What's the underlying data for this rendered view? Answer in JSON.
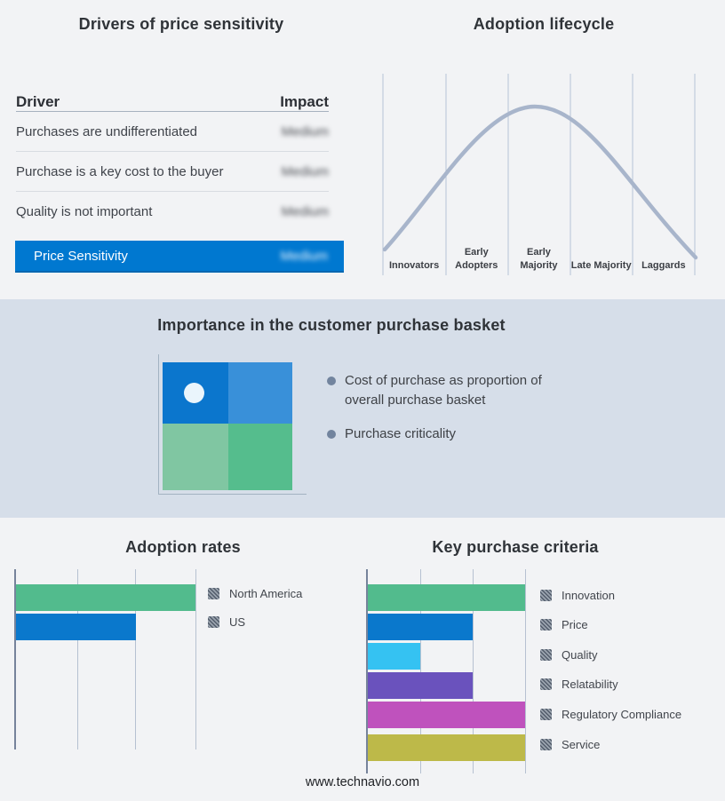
{
  "page": {
    "footer_url": "www.technavio.com",
    "background_color": "#f2f3f5",
    "band_color": "#d6dee9",
    "accent_blue": "#0078d0"
  },
  "drivers_panel": {
    "title": "Drivers of price sensitivity",
    "columns": {
      "driver": "Driver",
      "impact": "Impact"
    },
    "rows": [
      {
        "driver": "Purchases are undifferentiated",
        "impact": "Medium"
      },
      {
        "driver": "Purchase is a key cost to the buyer",
        "impact": "Medium"
      },
      {
        "driver": "Quality is not important",
        "impact": "Medium"
      }
    ],
    "summary_row": {
      "label": "Price Sensitivity",
      "impact": "Medium"
    }
  },
  "lifecycle_panel": {
    "title": "Adoption lifecycle",
    "stages": [
      "Innovators",
      "Early Adopters",
      "Early Majority",
      "Late Majority",
      "Laggards"
    ]
  },
  "basket_panel": {
    "title": "Importance in the customer purchase basket",
    "bullets": [
      "Cost of purchase as proportion of overall purchase basket",
      "Purchase criticality"
    ],
    "quadrant": {
      "top_left_color": "#0b76cd",
      "top_right_color": "#3990d9",
      "bottom_left_color": "#80c6a2",
      "bottom_right_color": "#55bd8d",
      "marker_quadrant": "top-left",
      "marker_color": "#eaf5fc"
    }
  },
  "chart_data": [
    {
      "id": "adoption-lifecycle",
      "type": "line",
      "title": "Adoption lifecycle",
      "categories": [
        "Innovators",
        "Early Adopters",
        "Early Majority",
        "Late Majority",
        "Laggards"
      ],
      "shape": "bell curve rising from Innovators, peaking over Early Majority, falling through Laggards",
      "curve_color": "#a8b5cb",
      "grid": "six vertical category divider lines, no numeric axes"
    },
    {
      "id": "adoption-rates",
      "type": "bar",
      "orientation": "horizontal",
      "title": "Adoption rates",
      "categories": [
        "North America",
        "US"
      ],
      "values": [
        3,
        2
      ],
      "xlim": [
        0,
        3
      ],
      "colors": [
        "#52bb8d",
        "#0a78cc"
      ],
      "gridline_count": 3,
      "legend_position": "right",
      "note": "no numeric axis labels shown; values measured in gridline units"
    },
    {
      "id": "key-purchase-criteria",
      "type": "bar",
      "orientation": "horizontal",
      "title": "Key purchase criteria",
      "categories": [
        "Innovation",
        "Price",
        "Quality",
        "Relatability",
        "Regulatory Compliance",
        "Service"
      ],
      "values": [
        3,
        2,
        1,
        2,
        3,
        3
      ],
      "xlim": [
        0,
        3
      ],
      "colors": [
        "#52bb8d",
        "#0a78cc",
        "#35c2f2",
        "#6a52bd",
        "#bf52bd",
        "#bdb949"
      ],
      "gridline_count": 3,
      "legend_position": "right",
      "note": "no numeric axis labels shown; values measured in gridline units"
    }
  ]
}
